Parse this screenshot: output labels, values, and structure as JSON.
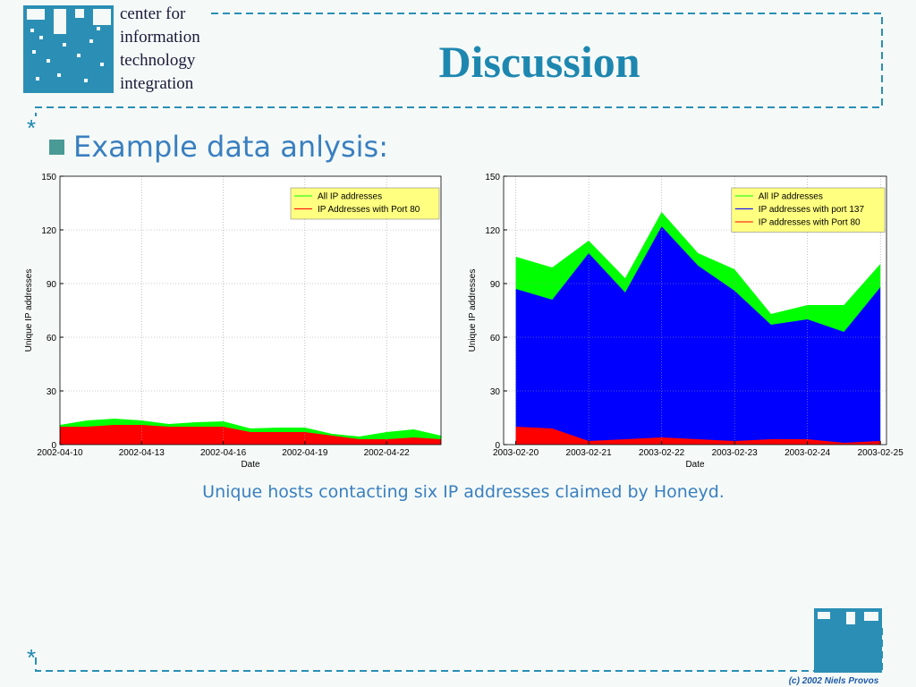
{
  "slide": {
    "logo_lines": [
      "center for",
      "information",
      "technology",
      "integration"
    ],
    "title": "Discussion",
    "markers": [
      "*",
      "*"
    ],
    "bullet": "Example data anlysis:",
    "caption": "Unique hosts contacting six IP addresses claimed by Honeyd.",
    "footer": "(c) 2002 Niels Provos"
  },
  "chart_data": [
    {
      "type": "area",
      "x_label": "Date",
      "y_label": "Unique IP addresses",
      "x": [
        "2002-04-10",
        "2002-04-11",
        "2002-04-12",
        "2002-04-13",
        "2002-04-14",
        "2002-04-15",
        "2002-04-16",
        "2002-04-17",
        "2002-04-18",
        "2002-04-19",
        "2002-04-20",
        "2002-04-21",
        "2002-04-22",
        "2002-04-23",
        "2002-04-24"
      ],
      "series": [
        {
          "name": "All IP addresses",
          "color": "#00ff00",
          "values": [
            11,
            13.5,
            14.5,
            13.5,
            11.5,
            12.5,
            13,
            9,
            9.5,
            9.5,
            6,
            4.5,
            7,
            8.5,
            5
          ]
        },
        {
          "name": "IP Addresses with Port 80",
          "color": "#ff0000",
          "values": [
            10,
            10,
            11,
            11,
            10,
            10,
            10,
            7,
            7,
            7,
            5,
            3,
            3,
            4,
            3
          ]
        }
      ],
      "xlim": [
        "2002-04-10",
        "2002-04-24"
      ],
      "xticks": [
        "2002-04-10",
        "2002-04-13",
        "2002-04-16",
        "2002-04-19",
        "2002-04-22"
      ],
      "ylim": [
        0,
        150
      ],
      "yticks": [
        0,
        30,
        60,
        90,
        120,
        150
      ],
      "grid": true,
      "legend": "upper right"
    },
    {
      "type": "area",
      "x_label": "Date",
      "y_label": "Unique IP addresses",
      "x": [
        "2003-02-20T00:00",
        "2003-02-20T12:00",
        "2003-02-21T00:00",
        "2003-02-21T12:00",
        "2003-02-22T00:00",
        "2003-02-22T12:00",
        "2003-02-23T00:00",
        "2003-02-23T12:00",
        "2003-02-24T00:00",
        "2003-02-24T12:00",
        "2003-02-25T00:00"
      ],
      "series": [
        {
          "name": "All IP addresses",
          "color": "#00ff00",
          "values": [
            105,
            99,
            114,
            93,
            130,
            107,
            98,
            73,
            78,
            78,
            101
          ]
        },
        {
          "name": "IP addresses with port 137",
          "color": "#0000ff",
          "values": [
            87,
            81,
            107,
            85,
            122,
            100,
            86,
            67,
            70,
            63,
            88
          ]
        },
        {
          "name": "IP addresses with Port 80",
          "color": "#ff0000",
          "values": [
            10,
            9,
            2,
            3,
            4,
            3,
            2,
            3,
            3,
            1,
            2
          ]
        }
      ],
      "xlim": [
        "2003-02-19T20:00",
        "2003-02-25T02:00"
      ],
      "xticks": [
        "2003-02-20",
        "2003-02-21",
        "2003-02-22",
        "2003-02-23",
        "2003-02-24",
        "2003-02-25"
      ],
      "ylim": [
        0,
        150
      ],
      "yticks": [
        0,
        30,
        60,
        90,
        120,
        150
      ],
      "grid": true,
      "legend": "upper right"
    }
  ]
}
